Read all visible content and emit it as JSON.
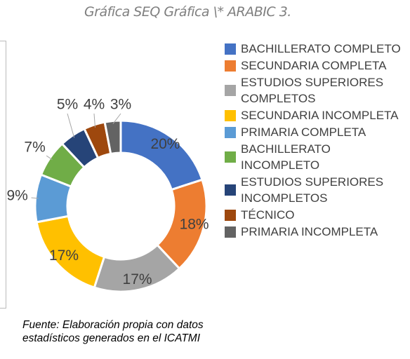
{
  "chart_data": {
    "type": "donut",
    "caption": "Gráfica  SEQ Gráfica \\* ARABIC 3.",
    "categories": [
      "BACHILLERATO COMPLETO",
      "SECUNDARIA COMPLETA",
      "ESTUDIOS SUPERIORES COMPLETOS",
      "SECUNDARIA INCOMPLETA",
      "PRIMARIA COMPLETA",
      "BACHILLERATO INCOMPLETO",
      "ESTUDIOS SUPERIORES INCOMPLETOS",
      "TÉCNICO",
      "PRIMARIA INCOMPLETA"
    ],
    "values": [
      20,
      18,
      17,
      17,
      9,
      7,
      5,
      4,
      3
    ],
    "value_labels": [
      "20%",
      "18%",
      "17%",
      "17%",
      "9%",
      "7%",
      "5%",
      "4%",
      "3%"
    ],
    "colors": [
      "#4472c4",
      "#ed7d31",
      "#a5a5a5",
      "#ffc000",
      "#5b9bd5",
      "#70ad47",
      "#264478",
      "#9e480e",
      "#636363"
    ],
    "legend": "right",
    "source": "Fuente: Elaboración propia con datos estadísticos generados en el ICATMI"
  }
}
